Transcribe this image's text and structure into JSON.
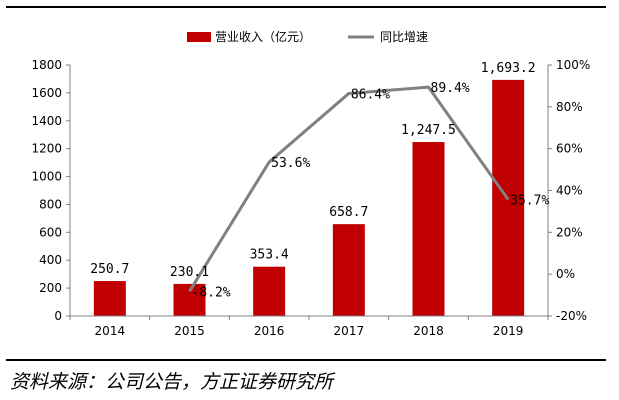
{
  "chart_data": {
    "type": "bar+line",
    "categories": [
      "2014",
      "2015",
      "2016",
      "2017",
      "2018",
      "2019"
    ],
    "series": [
      {
        "name": "营业收入（亿元）",
        "type": "bar",
        "axis": "left",
        "color": "#c00000",
        "values": [
          250.7,
          230.1,
          353.4,
          658.7,
          1247.5,
          1693.2
        ],
        "labels": [
          "250.7",
          "230.1",
          "353.4",
          "658.7",
          "1,247.5",
          "1,693.2"
        ]
      },
      {
        "name": "同比增速",
        "type": "line",
        "axis": "right",
        "color": "#808080",
        "values": [
          null,
          -8.2,
          53.6,
          86.4,
          89.4,
          35.7
        ],
        "labels": [
          "",
          "-8.2%",
          "53.6%",
          "86.4%",
          "89.4%",
          "35.7%"
        ]
      }
    ],
    "left_axis": {
      "ylim": [
        0,
        1800
      ],
      "ticks": [
        "0",
        "200",
        "400",
        "600",
        "800",
        "1000",
        "1200",
        "1400",
        "1600",
        "1800"
      ]
    },
    "right_axis": {
      "ylim": [
        -20,
        100
      ],
      "ticks": [
        "-20%",
        "0%",
        "20%",
        "40%",
        "60%",
        "80%",
        "100%"
      ]
    },
    "legend_position": "top-center",
    "grid": false
  },
  "source_text": "资料来源：公司公告，方正证券研究所"
}
